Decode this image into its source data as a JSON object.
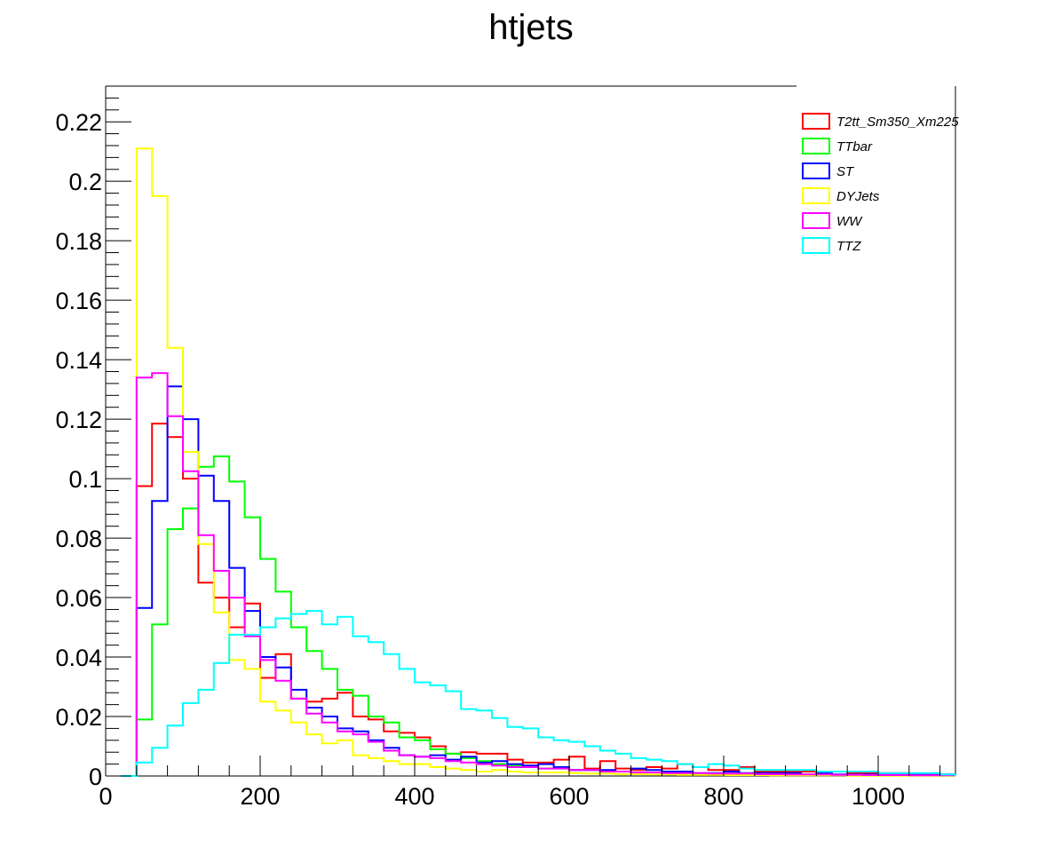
{
  "chart_data": {
    "type": "histogram",
    "title": "htjets",
    "xlabel": "",
    "ylabel": "",
    "xlim": [
      0,
      1100
    ],
    "ylim": [
      0,
      0.232
    ],
    "bin_width": 20,
    "x_start": 40,
    "x_ticks": [
      0,
      200,
      400,
      600,
      800,
      1000
    ],
    "x_tick_labels": [
      "0",
      "200",
      "400",
      "600",
      "800",
      "1000"
    ],
    "y_ticks": [
      0,
      0.02,
      0.04,
      0.06,
      0.08,
      0.1,
      0.12,
      0.14,
      0.16,
      0.18,
      0.2,
      0.22
    ],
    "y_tick_labels": [
      "0",
      "0.02",
      "0.04",
      "0.06",
      "0.08",
      "0.1",
      "0.12",
      "0.14",
      "0.16",
      "0.18",
      "0.2",
      "0.22"
    ],
    "legend_position": "top-right",
    "series": [
      {
        "name": "T2tt_Sm350_Xm225",
        "color": "#ff0000",
        "values": [
          0.0975,
          0.1185,
          0.114,
          0.1,
          0.065,
          0.06,
          0.05,
          0.058,
          0.033,
          0.041,
          0.026,
          0.025,
          0.026,
          0.028,
          0.02,
          0.019,
          0.015,
          0.0145,
          0.013,
          0.01,
          0.0075,
          0.008,
          0.0075,
          0.0075,
          0.0055,
          0.0045,
          0.0045,
          0.0055,
          0.0065,
          0.0025,
          0.005,
          0.0025,
          0.002,
          0.003,
          0.0025,
          0.004,
          0.003,
          0.002,
          0.002,
          0.003,
          0.0015,
          0.0015,
          0.0015,
          0.0015,
          0.001,
          0.0015,
          0.001,
          0.001,
          0.001,
          0.001,
          0.0005,
          0.0005,
          0.0005
        ]
      },
      {
        "name": "TTbar",
        "color": "#00ff00",
        "values": [
          0.019,
          0.051,
          0.083,
          0.09,
          0.104,
          0.1075,
          0.099,
          0.087,
          0.073,
          0.062,
          0.05,
          0.042,
          0.036,
          0.029,
          0.027,
          0.02,
          0.018,
          0.013,
          0.012,
          0.009,
          0.0075,
          0.006,
          0.005,
          0.004,
          0.0035,
          0.003,
          0.0025,
          0.0025,
          0.002,
          0.002,
          0.0015,
          0.0015,
          0.0012,
          0.0012,
          0.001,
          0.001,
          0.0008,
          0.0008,
          0.0008,
          0.0006,
          0.0006,
          0.0005,
          0.0005,
          0.0004,
          0.0004,
          0.0003,
          0.0003,
          0.0003,
          0.0002,
          0.0002,
          0.0002,
          0.0002,
          0.0001
        ]
      },
      {
        "name": "ST",
        "color": "#0000ff",
        "values": [
          0.0565,
          0.0925,
          0.131,
          0.12,
          0.101,
          0.0925,
          0.07,
          0.0555,
          0.04,
          0.0365,
          0.029,
          0.023,
          0.02,
          0.016,
          0.015,
          0.012,
          0.0095,
          0.007,
          0.0065,
          0.007,
          0.0055,
          0.0065,
          0.0045,
          0.005,
          0.004,
          0.0035,
          0.004,
          0.003,
          0.002,
          0.002,
          0.002,
          0.0015,
          0.0025,
          0.002,
          0.0015,
          0.0015,
          0.001,
          0.001,
          0.0015,
          0.001,
          0.001,
          0.001,
          0.001,
          0.0005,
          0.001,
          0.0005,
          0.0005,
          0.0005,
          0.0005,
          0.0005,
          0.0005,
          0.0005,
          0.0005
        ]
      },
      {
        "name": "DYJets",
        "color": "#ffff00",
        "values": [
          0.211,
          0.195,
          0.144,
          0.109,
          0.078,
          0.055,
          0.039,
          0.036,
          0.025,
          0.022,
          0.018,
          0.014,
          0.011,
          0.012,
          0.007,
          0.006,
          0.005,
          0.004,
          0.004,
          0.003,
          0.0025,
          0.002,
          0.0015,
          0.002,
          0.0015,
          0.0012,
          0.0012,
          0.0012,
          0.001,
          0.0008,
          0.0008,
          0.0006,
          0.0006,
          0.0005,
          0.0005,
          0.0004,
          0.0004,
          0.0004,
          0.0003,
          0.0003,
          0.0003,
          0.0002,
          0.0002,
          0.0002,
          0.0002,
          0.0002,
          0.0001,
          0.0001,
          0.0001,
          0.0001,
          0.0001,
          0.0001,
          0.0001
        ]
      },
      {
        "name": "WW",
        "color": "#ff00ff",
        "values": [
          0.134,
          0.1355,
          0.121,
          0.1025,
          0.081,
          0.069,
          0.06,
          0.047,
          0.039,
          0.032,
          0.026,
          0.021,
          0.018,
          0.015,
          0.014,
          0.0115,
          0.0085,
          0.007,
          0.0065,
          0.006,
          0.005,
          0.0045,
          0.004,
          0.0035,
          0.003,
          0.003,
          0.0025,
          0.0025,
          0.002,
          0.002,
          0.0015,
          0.0015,
          0.0012,
          0.0012,
          0.001,
          0.001,
          0.001,
          0.0008,
          0.0008,
          0.0008,
          0.0006,
          0.0006,
          0.0005,
          0.0005,
          0.0005,
          0.0004,
          0.0004,
          0.0003,
          0.0003,
          0.0003,
          0.0002,
          0.0002,
          0.0002
        ]
      },
      {
        "name": "TTZ",
        "color": "#00ffff",
        "values": [
          0.0045,
          0.0095,
          0.017,
          0.0245,
          0.029,
          0.038,
          0.0475,
          0.0475,
          0.05,
          0.053,
          0.0545,
          0.0555,
          0.051,
          0.0535,
          0.047,
          0.045,
          0.041,
          0.036,
          0.0315,
          0.0305,
          0.0285,
          0.0225,
          0.022,
          0.0195,
          0.0165,
          0.016,
          0.013,
          0.012,
          0.0115,
          0.01,
          0.0085,
          0.0075,
          0.006,
          0.0055,
          0.005,
          0.004,
          0.003,
          0.004,
          0.0035,
          0.0025,
          0.002,
          0.002,
          0.002,
          0.002,
          0.0015,
          0.0015,
          0.0015,
          0.0015,
          0.001,
          0.001,
          0.001,
          0.001,
          0.0005
        ]
      }
    ]
  }
}
